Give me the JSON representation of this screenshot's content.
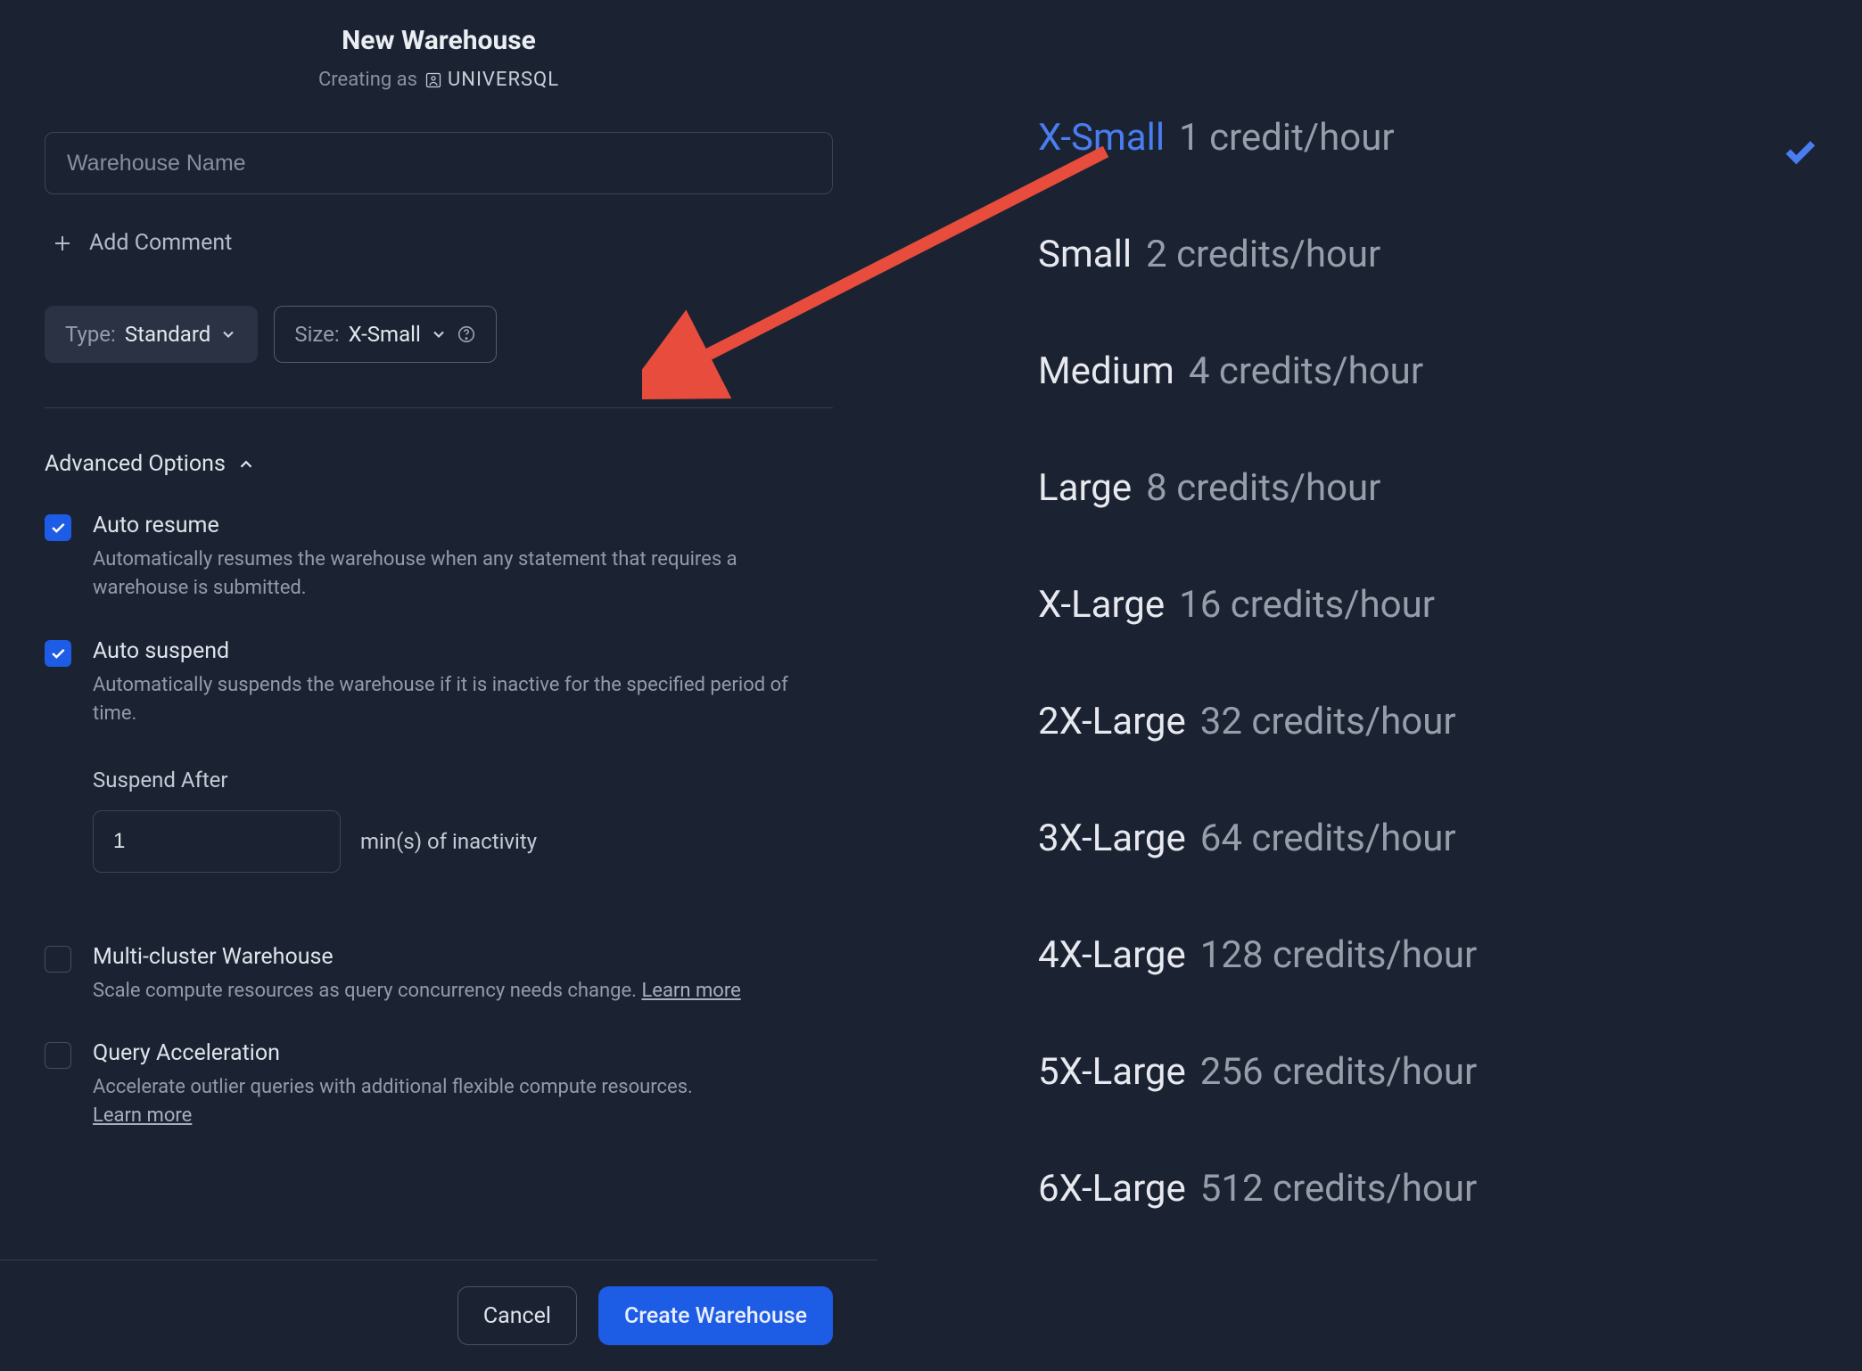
{
  "header": {
    "title": "New Warehouse",
    "creating_as_label": "Creating as",
    "username": "UNIVERSQL"
  },
  "inputs": {
    "name_placeholder": "Warehouse Name",
    "add_comment_label": "Add Comment"
  },
  "selectors": {
    "type_label": "Type:",
    "type_value": "Standard",
    "size_label": "Size:",
    "size_value": "X-Small"
  },
  "advanced": {
    "header": "Advanced Options",
    "auto_resume": {
      "title": "Auto resume",
      "desc": "Automatically resumes the warehouse when any statement that requires a warehouse is submitted.",
      "checked": true
    },
    "auto_suspend": {
      "title": "Auto suspend",
      "desc": "Automatically suspends the warehouse if it is inactive for the specified period of time.",
      "checked": true
    },
    "suspend_after": {
      "label": "Suspend After",
      "value": "1",
      "unit": "min(s) of inactivity"
    },
    "multi_cluster": {
      "title": "Multi-cluster Warehouse",
      "desc_prefix": "Scale compute resources as query concurrency needs change. ",
      "learn_more": "Learn more",
      "checked": false
    },
    "query_accel": {
      "title": "Query Acceleration",
      "desc_prefix": "Accelerate outlier queries with additional flexible compute resources. ",
      "learn_more": "Learn more",
      "checked": false
    }
  },
  "footer": {
    "cancel": "Cancel",
    "create": "Create Warehouse"
  },
  "size_menu": {
    "selected_index": 0,
    "options": [
      {
        "name": "X-Small",
        "credits": "1 credit/hour"
      },
      {
        "name": "Small",
        "credits": "2 credits/hour"
      },
      {
        "name": "Medium",
        "credits": "4 credits/hour"
      },
      {
        "name": "Large",
        "credits": "8 credits/hour"
      },
      {
        "name": "X-Large",
        "credits": "16 credits/hour"
      },
      {
        "name": "2X-Large",
        "credits": "32 credits/hour"
      },
      {
        "name": "3X-Large",
        "credits": "64 credits/hour"
      },
      {
        "name": "4X-Large",
        "credits": "128 credits/hour"
      },
      {
        "name": "5X-Large",
        "credits": "256 credits/hour"
      },
      {
        "name": "6X-Large",
        "credits": "512 credits/hour"
      }
    ]
  },
  "annotation": {
    "arrow_color": "#e74c3c"
  }
}
